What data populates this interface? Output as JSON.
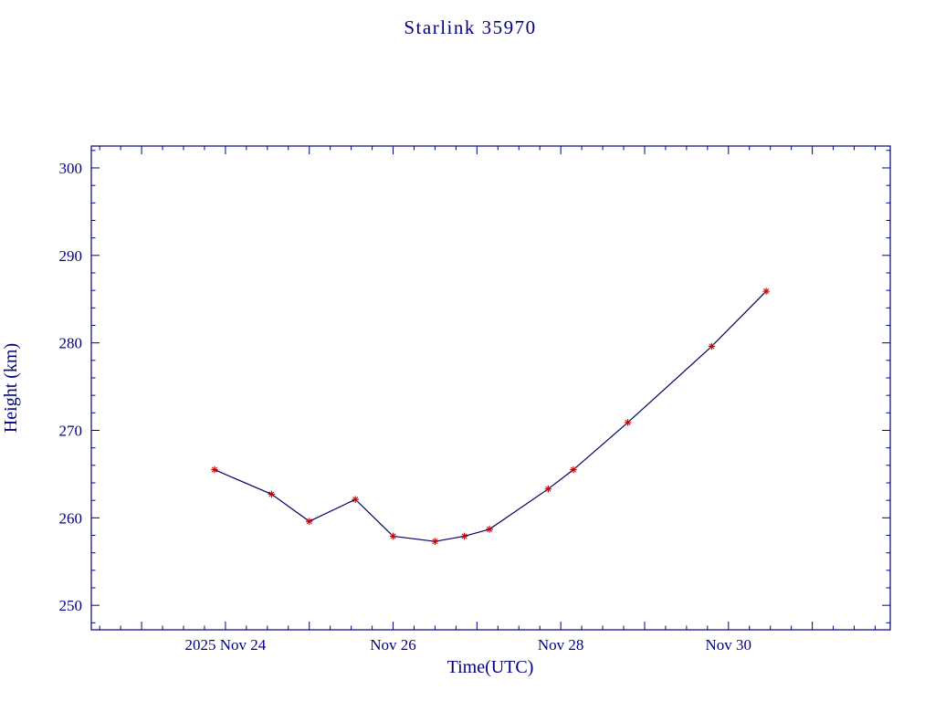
{
  "title": "Starlink 35970",
  "colors": {
    "axis": "#000080",
    "text": "#000080",
    "line": "#000066",
    "marker": "#cc0000",
    "background": "#ffffff"
  },
  "chart_data": {
    "type": "line",
    "title": "Starlink 35970",
    "xlabel": "Time(UTC)",
    "ylabel": "Height (km)",
    "x_unit": "day of November 2025",
    "xlim": [
      22.4,
      31.93
    ],
    "ylim": [
      247.2,
      302.5
    ],
    "grid": false,
    "legend": false,
    "x_major_tick_step": 1,
    "x_minor_step": 0.25,
    "y_major_ticks": [
      250,
      260,
      270,
      280,
      290,
      300
    ],
    "y_minor_step": 2,
    "x_tick_labels": [
      {
        "value": 24,
        "label": "2025 Nov 24"
      },
      {
        "value": 26,
        "label": "Nov 26"
      },
      {
        "value": 28,
        "label": "Nov 28"
      },
      {
        "value": 30,
        "label": "Nov 30"
      }
    ],
    "series": [
      {
        "name": "height",
        "marker": "red-asterisk",
        "points": [
          {
            "x": 23.87,
            "y": 265.5
          },
          {
            "x": 24.55,
            "y": 262.7
          },
          {
            "x": 25.0,
            "y": 259.6
          },
          {
            "x": 25.55,
            "y": 262.1
          },
          {
            "x": 26.0,
            "y": 257.9
          },
          {
            "x": 26.5,
            "y": 257.3
          },
          {
            "x": 26.85,
            "y": 257.9
          },
          {
            "x": 27.15,
            "y": 258.7
          },
          {
            "x": 27.85,
            "y": 263.3
          },
          {
            "x": 28.15,
            "y": 265.5
          },
          {
            "x": 28.8,
            "y": 270.9
          },
          {
            "x": 29.8,
            "y": 279.6
          },
          {
            "x": 30.45,
            "y": 285.9
          }
        ]
      }
    ]
  }
}
